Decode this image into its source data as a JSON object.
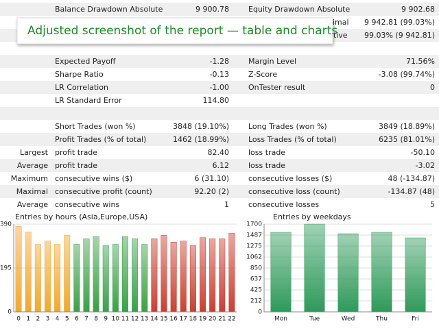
{
  "banner": "Adjusted screenshot of the report — table and charts",
  "table": {
    "sections": [
      [
        [
          null,
          "Balance Drawdown Absolute",
          "9 900.78",
          "Equity Drawdown Absolute",
          "9 902.68"
        ],
        [
          null,
          null,
          null,
          "Equity Drawdown Maximal",
          "9 942.81 (99.03%)"
        ],
        [
          null,
          null,
          null,
          "Equity Drawdown Relative",
          "99.03% (9 942.81)"
        ]
      ],
      [
        [
          null,
          "Expected Payoff",
          "-1.28",
          "Margin Level",
          "71.56%"
        ],
        [
          null,
          "Sharpe Ratio",
          "-0.13",
          "Z-Score",
          "-3.08 (99.74%)"
        ],
        [
          null,
          "LR Correlation",
          "-1.00",
          "OnTester result",
          "0"
        ],
        [
          null,
          "LR Standard Error",
          "114.80",
          null,
          null
        ]
      ],
      [
        [
          null,
          "Short Trades (won %)",
          "3848 (19.10%)",
          "Long Trades (won %)",
          "3849 (18.89%)"
        ],
        [
          null,
          "Profit Trades (% of total)",
          "1462 (18.99%)",
          "Loss Trades (% of total)",
          "6235 (81.01%)"
        ],
        [
          "Largest",
          "profit trade",
          "82.40",
          "loss trade",
          "-50.10"
        ],
        [
          "Average",
          "profit trade",
          "6.12",
          "loss trade",
          "-3.02"
        ],
        [
          "Maximum",
          "consecutive wins ($)",
          "6 (31.10)",
          "consecutive losses ($)",
          "48 (-134.87)"
        ],
        [
          "Maximal",
          "consecutive profit (count)",
          "92.20 (2)",
          "consecutive loss (count)",
          "-134.87 (48)"
        ],
        [
          "Average",
          "consecutive wins",
          "1",
          "consecutive losses",
          "5"
        ]
      ]
    ]
  },
  "chart_data": [
    {
      "type": "bar",
      "title": "Entries by hours (Asia,Europe,USA)",
      "categories": [
        "0",
        "1",
        "2",
        "3",
        "4",
        "5",
        "6",
        "7",
        "8",
        "9",
        "10",
        "11",
        "12",
        "13",
        "14",
        "15",
        "16",
        "17",
        "18",
        "19",
        "20",
        "21",
        "22"
      ],
      "values": [
        380,
        355,
        300,
        315,
        300,
        340,
        300,
        325,
        335,
        295,
        300,
        335,
        325,
        300,
        325,
        340,
        310,
        315,
        295,
        330,
        325,
        325,
        350
      ],
      "colors": [
        "#f0a830",
        "#f0a830",
        "#f0a830",
        "#f0a830",
        "#f0a830",
        "#f0a830",
        "#3aa048",
        "#3aa048",
        "#3aa048",
        "#3aa048",
        "#3aa048",
        "#3aa048",
        "#3aa048",
        "#3aa048",
        "#c84030",
        "#c84030",
        "#c84030",
        "#c84030",
        "#c84030",
        "#c84030",
        "#c84030",
        "#c84030",
        "#c84030"
      ],
      "ylim": [
        0,
        390
      ],
      "yticks": [
        0,
        195,
        390
      ],
      "grid": true
    },
    {
      "type": "bar",
      "title": "Entries by weekdays",
      "categories": [
        "Mon",
        "Tue",
        "Wed",
        "Thu",
        "Fri"
      ],
      "values": [
        1541,
        1700,
        1514,
        1541,
        1434
      ],
      "colors": [
        "#2e9a5a",
        "#2e9a5a",
        "#2e9a5a",
        "#2e9a5a",
        "#2e9a5a"
      ],
      "ylim": [
        0,
        1700
      ],
      "yticks": [
        0,
        212,
        425,
        637,
        850,
        1062,
        1275,
        1487,
        1700
      ],
      "grid": true
    }
  ]
}
